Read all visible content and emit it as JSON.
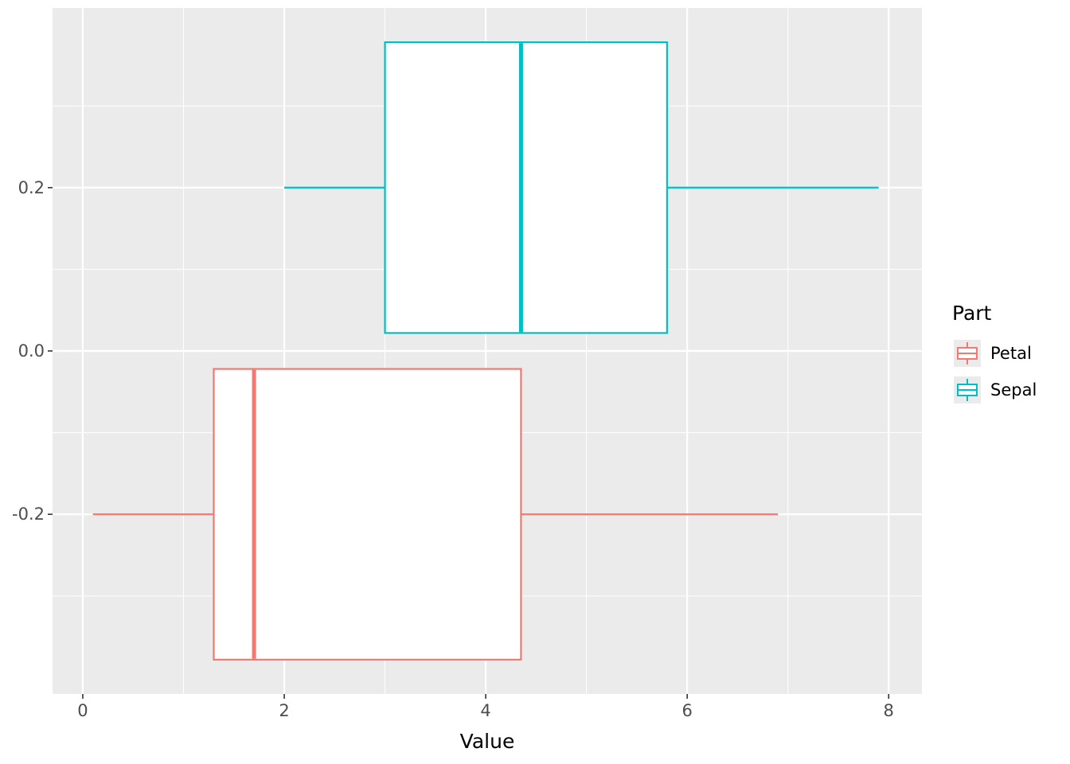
{
  "chart_data": {
    "type": "boxplot",
    "orientation": "horizontal",
    "title": "",
    "xlabel": "Value",
    "ylabel": "",
    "xlim": [
      -0.3,
      8.33
    ],
    "ylim": [
      -0.42,
      0.42
    ],
    "x_ticks": [
      0,
      2,
      4,
      6,
      8
    ],
    "x_tick_labels": [
      "0",
      "2",
      "4",
      "6",
      "8"
    ],
    "x_minor_ticks": [
      1,
      3,
      5,
      7
    ],
    "y_ticks": [
      -0.2,
      0.0,
      0.2
    ],
    "y_tick_labels": [
      "-0.2",
      "0.0",
      "0.2"
    ],
    "y_minor_ticks": [
      -0.3,
      -0.1,
      0.1,
      0.3
    ],
    "grid": true,
    "legend": {
      "title": "Part",
      "position": "right",
      "entries": [
        {
          "label": "Petal",
          "color": "#F8766D"
        },
        {
          "label": "Sepal",
          "color": "#00BFC4"
        }
      ]
    },
    "series": [
      {
        "name": "Petal",
        "color": "#F8766D",
        "center": -0.2,
        "box_half_height": 0.178,
        "min": 0.1,
        "q1": 1.3,
        "median": 1.7,
        "q3": 4.35,
        "max": 6.9
      },
      {
        "name": "Sepal",
        "color": "#00BFC4",
        "center": 0.2,
        "box_half_height": 0.178,
        "min": 2.0,
        "q1": 3.0,
        "median": 4.35,
        "q3": 5.8,
        "max": 7.9
      }
    ],
    "colors": {
      "panel_bg": "#EBEBEB",
      "grid": "#FFFFFF",
      "box_fill": "#FFFFFF",
      "tick_mark": "#333333",
      "tick_label": "#4D4D4D",
      "text": "#000000",
      "legend_key_bg": "#EBEBEB"
    }
  }
}
